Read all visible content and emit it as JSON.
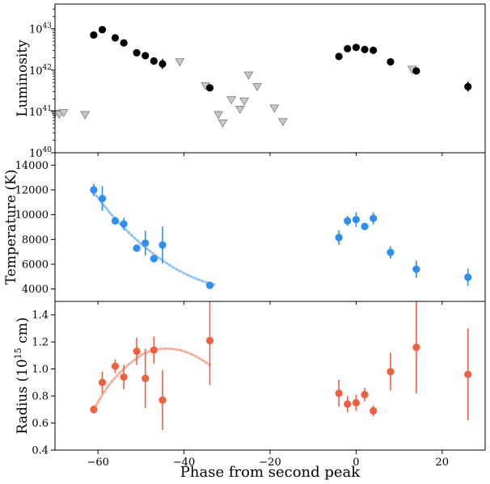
{
  "chart_data": [
    {
      "type": "scatter",
      "panel": "luminosity",
      "title": "",
      "xlabel": "",
      "ylabel": "Luminosity",
      "xlim": [
        -70,
        30
      ],
      "ylim_log10": [
        40,
        43.6
      ],
      "yscale": "log",
      "ytick_base": "10",
      "ytick_exponents": [
        "40",
        "41",
        "42",
        "43"
      ],
      "colors": {
        "detection": "#000000",
        "limit_fill": "#c8c8c8",
        "limit_edge": "#7a7a7a"
      },
      "series": [
        {
          "name": "detections",
          "marker": "circle",
          "x": [
            -61,
            -59,
            -56,
            -54,
            -51,
            -49,
            -47,
            -45,
            -34,
            -4,
            -2,
            0,
            2,
            4,
            8,
            14,
            26
          ],
          "log10_y": [
            42.85,
            42.98,
            42.78,
            42.66,
            42.42,
            42.35,
            42.22,
            42.15,
            41.57,
            42.33,
            42.52,
            42.55,
            42.5,
            42.48,
            42.2,
            41.98,
            41.6
          ],
          "log10_err": [
            0.08,
            0.06,
            0.05,
            0.05,
            0.05,
            0.05,
            0.06,
            0.12,
            0.05,
            0.05,
            0.05,
            0.05,
            0.05,
            0.05,
            0.05,
            0.04,
            0.12
          ]
        },
        {
          "name": "upper limits",
          "marker": "triangle-down",
          "x": [
            -70,
            -69,
            -68,
            -63,
            -41,
            -35,
            -32,
            -31,
            -29,
            -27,
            -26,
            -25,
            -23,
            -19,
            -17,
            13
          ],
          "log10_y": [
            40.95,
            40.93,
            40.97,
            40.92,
            42.2,
            41.62,
            40.92,
            40.72,
            41.28,
            41.05,
            41.25,
            41.88,
            41.6,
            41.08,
            40.75,
            42.02
          ]
        }
      ]
    },
    {
      "type": "scatter",
      "panel": "temperature",
      "title": "",
      "xlabel": "",
      "ylabel": "Temperature (K)",
      "xlim": [
        -70,
        30
      ],
      "ylim": [
        3000,
        15000
      ],
      "yticks": [
        "4000",
        "6000",
        "8000",
        "10000",
        "12000",
        "14000"
      ],
      "colors": {
        "points": "#2e8ff0",
        "fit": "#8fc3f5"
      },
      "series": [
        {
          "name": "temperature",
          "x": [
            -61,
            -59,
            -56,
            -54,
            -51,
            -49,
            -47,
            -45,
            -34,
            -4,
            -2,
            0,
            2,
            4,
            8,
            14,
            26
          ],
          "y": [
            12000,
            11300,
            9500,
            9250,
            7300,
            7700,
            6450,
            7550,
            4300,
            8150,
            9500,
            9600,
            9050,
            9700,
            6950,
            5600,
            4950
          ],
          "err": [
            500,
            1000,
            300,
            500,
            300,
            1000,
            300,
            1500,
            300,
            600,
            400,
            600,
            300,
            500,
            500,
            700,
            700
          ]
        }
      ],
      "fit": {
        "x": [
          -61,
          -59,
          -57,
          -55,
          -53,
          -51,
          -49,
          -47,
          -45,
          -43,
          -41,
          -39,
          -37,
          -35,
          -33
        ],
        "y": [
          11800,
          10900,
          10050,
          9300,
          8600,
          7950,
          7350,
          6800,
          6300,
          5850,
          5450,
          5100,
          4800,
          4550,
          4350
        ]
      }
    },
    {
      "type": "scatter",
      "panel": "radius",
      "title": "",
      "xlabel": "Phase from second peak",
      "ylabel_main": "Radius (10",
      "ylabel_exp": "15",
      "ylabel_tail": " cm)",
      "xlim": [
        -70,
        30
      ],
      "ylim": [
        0.4,
        1.5
      ],
      "yticks": [
        "0.4",
        "0.6",
        "0.8",
        "1.0",
        "1.2",
        "1.4"
      ],
      "xticks": [
        "−60",
        "−40",
        "−20",
        "0",
        "20"
      ],
      "colors": {
        "points": "#f06040",
        "fit": "#f5ac98"
      },
      "series": [
        {
          "name": "radius",
          "x": [
            -61,
            -59,
            -56,
            -54,
            -51,
            -49,
            -47,
            -45,
            -34,
            -4,
            -2,
            0,
            2,
            4,
            8,
            14,
            26
          ],
          "y": [
            0.7,
            0.9,
            1.02,
            0.94,
            1.13,
            0.93,
            1.14,
            0.77,
            1.21,
            0.82,
            0.74,
            0.75,
            0.81,
            0.69,
            0.98,
            1.16,
            0.96
          ],
          "err": [
            0.03,
            0.08,
            0.05,
            0.09,
            0.1,
            0.22,
            0.1,
            0.22,
            0.33,
            0.1,
            0.06,
            0.06,
            0.05,
            0.04,
            0.14,
            0.34,
            0.34
          ]
        }
      ],
      "fit": {
        "x": [
          -61,
          -59,
          -57,
          -55,
          -53,
          -51,
          -49,
          -47,
          -45,
          -43,
          -41,
          -39,
          -37,
          -35,
          -34
        ],
        "y": [
          0.7,
          0.81,
          0.9,
          0.97,
          1.03,
          1.08,
          1.12,
          1.14,
          1.15,
          1.15,
          1.14,
          1.12,
          1.09,
          1.05,
          1.03
        ]
      }
    }
  ]
}
